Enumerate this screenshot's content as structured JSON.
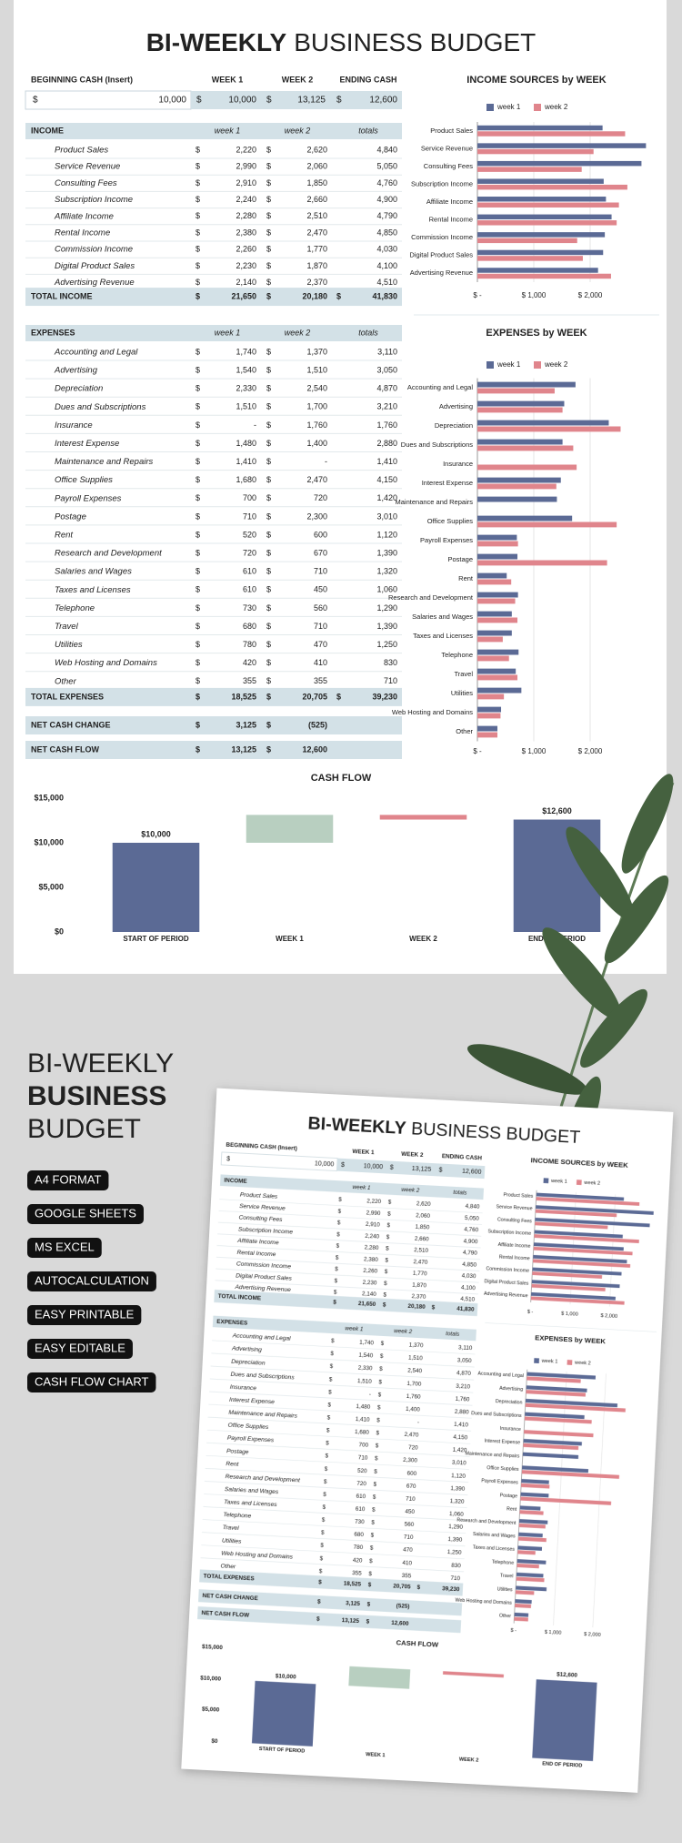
{
  "header": {
    "title_bold": "BI-WEEKLY",
    "title_rest": "BUSINESS BUDGET"
  },
  "currency": "$",
  "cash_table": {
    "columns": [
      "BEGINNING CASH (Insert)",
      "WEEK 1",
      "WEEK 2",
      "ENDING CASH"
    ],
    "values": [
      "10,000",
      "10,000",
      "13,125",
      "12,600"
    ]
  },
  "income": {
    "title": "INCOME",
    "columns": [
      "week 1",
      "week 2",
      "totals"
    ],
    "rows": [
      [
        "Product Sales",
        "2,220",
        "2,620",
        "4,840"
      ],
      [
        "Service Revenue",
        "2,990",
        "2,060",
        "5,050"
      ],
      [
        "Consulting Fees",
        "2,910",
        "1,850",
        "4,760"
      ],
      [
        "Subscription Income",
        "2,240",
        "2,660",
        "4,900"
      ],
      [
        "Affiliate Income",
        "2,280",
        "2,510",
        "4,790"
      ],
      [
        "Rental Income",
        "2,380",
        "2,470",
        "4,850"
      ],
      [
        "Commission Income",
        "2,260",
        "1,770",
        "4,030"
      ],
      [
        "Digital Product Sales",
        "2,230",
        "1,870",
        "4,100"
      ],
      [
        "Advertising Revenue",
        "2,140",
        "2,370",
        "4,510"
      ]
    ],
    "total": [
      "TOTAL INCOME",
      "21,650",
      "20,180",
      "41,830"
    ]
  },
  "expenses": {
    "title": "EXPENSES",
    "columns": [
      "week 1",
      "week 2",
      "totals"
    ],
    "rows": [
      [
        "Accounting and Legal",
        "1,740",
        "1,370",
        "3,110"
      ],
      [
        "Advertising",
        "1,540",
        "1,510",
        "3,050"
      ],
      [
        "Depreciation",
        "2,330",
        "2,540",
        "4,870"
      ],
      [
        "Dues and Subscriptions",
        "1,510",
        "1,700",
        "3,210"
      ],
      [
        "Insurance",
        "-",
        "1,760",
        "1,760"
      ],
      [
        "Interest Expense",
        "1,480",
        "1,400",
        "2,880"
      ],
      [
        "Maintenance and Repairs",
        "1,410",
        "-",
        "1,410"
      ],
      [
        "Office Supplies",
        "1,680",
        "2,470",
        "4,150"
      ],
      [
        "Payroll Expenses",
        "700",
        "720",
        "1,420"
      ],
      [
        "Postage",
        "710",
        "2,300",
        "3,010"
      ],
      [
        "Rent",
        "520",
        "600",
        "1,120"
      ],
      [
        "Research and Development",
        "720",
        "670",
        "1,390"
      ],
      [
        "Salaries and Wages",
        "610",
        "710",
        "1,320"
      ],
      [
        "Taxes and Licenses",
        "610",
        "450",
        "1,060"
      ],
      [
        "Telephone",
        "730",
        "560",
        "1,290"
      ],
      [
        "Travel",
        "680",
        "710",
        "1,390"
      ],
      [
        "Utilities",
        "780",
        "470",
        "1,250"
      ],
      [
        "Web Hosting and Domains",
        "420",
        "410",
        "830"
      ],
      [
        "Other",
        "355",
        "355",
        "710"
      ]
    ],
    "total": [
      "TOTAL EXPENSES",
      "18,525",
      "20,705",
      "39,230"
    ]
  },
  "net_cash_change": [
    "NET CASH CHANGE",
    "3,125",
    "(525)"
  ],
  "net_cash_flow": [
    "NET CASH FLOW",
    "13,125",
    "12,600"
  ],
  "chart_data": [
    {
      "type": "bar",
      "orientation": "horizontal",
      "title": "INCOME SOURCES by WEEK",
      "categories": [
        "Product Sales",
        "Service Revenue",
        "Consulting Fees",
        "Subscription Income",
        "Affiliate Income",
        "Rental Income",
        "Commission Income",
        "Digital Product Sales",
        "Advertising Revenue"
      ],
      "series": [
        {
          "name": "week 1",
          "color": "#5b6a95",
          "values": [
            2220,
            2990,
            2910,
            2240,
            2280,
            2380,
            2260,
            2230,
            2140
          ]
        },
        {
          "name": "week 2",
          "color": "#e0858c",
          "values": [
            2620,
            2060,
            1850,
            2660,
            2510,
            2470,
            1770,
            1870,
            2370
          ]
        }
      ],
      "xlim": [
        0,
        3000
      ],
      "xticks": [
        {
          "value": 0,
          "label": "$ -"
        },
        {
          "value": 1000,
          "label": "$ 1,000"
        },
        {
          "value": 2000,
          "label": "$ 2,000"
        }
      ],
      "grid": true
    },
    {
      "type": "bar",
      "orientation": "horizontal",
      "title": "EXPENSES by WEEK",
      "categories": [
        "Accounting and Legal",
        "Advertising",
        "Depreciation",
        "Dues and Subscriptions",
        "Insurance",
        "Interest Expense",
        "Maintenance and Repairs",
        "Office Supplies",
        "Payroll Expenses",
        "Postage",
        "Rent",
        "Research and Development",
        "Salaries and Wages",
        "Taxes and Licenses",
        "Telephone",
        "Travel",
        "Utilities",
        "Web Hosting and Domains",
        "Other"
      ],
      "series": [
        {
          "name": "week 1",
          "color": "#5b6a95",
          "values": [
            1740,
            1540,
            2330,
            1510,
            0,
            1480,
            1410,
            1680,
            700,
            710,
            520,
            720,
            610,
            610,
            730,
            680,
            780,
            420,
            355
          ]
        },
        {
          "name": "week 2",
          "color": "#e0858c",
          "values": [
            1370,
            1510,
            2540,
            1700,
            1760,
            1400,
            0,
            2470,
            720,
            2300,
            600,
            670,
            710,
            450,
            560,
            710,
            470,
            410,
            355
          ]
        }
      ],
      "xlim": [
        0,
        3000
      ],
      "xticks": [
        {
          "value": 0,
          "label": "$ -"
        },
        {
          "value": 1000,
          "label": "$ 1,000"
        },
        {
          "value": 2000,
          "label": "$ 2,000"
        }
      ],
      "grid": true
    },
    {
      "type": "waterfall",
      "title": "CASH FLOW",
      "categories": [
        "START OF PERIOD",
        "WEEK 1",
        "WEEK 2",
        "END OF PERIOD"
      ],
      "values": [
        10000,
        3125,
        -525,
        12600
      ],
      "bar_kinds": [
        "total",
        "delta",
        "delta",
        "total"
      ],
      "colors": [
        "#5b6a95",
        "#b8cfc0",
        "#e0858c",
        "#5b6a95"
      ],
      "value_labels": [
        "$10,000",
        null,
        null,
        "$12,600"
      ],
      "ylim": [
        0,
        15000
      ],
      "yticks": [
        {
          "value": 0,
          "label": "$0"
        },
        {
          "value": 5000,
          "label": "$5,000"
        },
        {
          "value": 10000,
          "label": "$10,000"
        },
        {
          "value": 15000,
          "label": "$15,000"
        }
      ],
      "grid": false
    }
  ],
  "promo": {
    "title_lines": [
      "BI-WEEKLY",
      "BUSINESS",
      "BUDGET"
    ],
    "tags": [
      "A4 FORMAT",
      "GOOGLE SHEETS",
      "MS EXCEL",
      "AUTOCALCULATION",
      "EASY PRINTABLE",
      "EASY EDITABLE",
      "CASH FLOW CHART"
    ]
  }
}
